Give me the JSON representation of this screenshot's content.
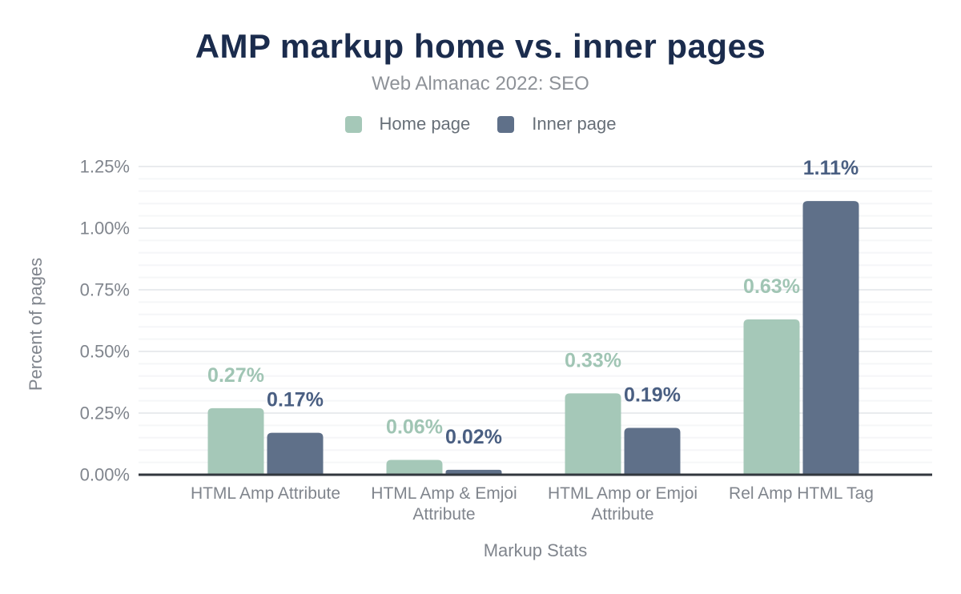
{
  "header": {
    "title": "AMP markup home vs. inner pages",
    "subtitle": "Web Almanac 2022: SEO"
  },
  "legend": [
    {
      "label": "Home page",
      "color": "#a5c8b8"
    },
    {
      "label": "Inner page",
      "color": "#5f7089"
    }
  ],
  "colors": {
    "title_text": "#1b2c4d",
    "subtitle_text": "#8e9298",
    "home_series": "#a5c8b8",
    "inner_series": "#5f7089",
    "home_value_label": "#a0c5b4",
    "inner_value_label": "#4a5f82",
    "axis_text": "#80858d",
    "axis_line": "#32373e",
    "grid_major": "#e9ebee",
    "grid_minor": "#f5f6f8",
    "background": "#ffffff"
  },
  "chart_data": {
    "type": "bar",
    "title": "AMP markup home vs. inner pages",
    "subtitle": "Web Almanac 2022: SEO",
    "xlabel": "Markup Stats",
    "ylabel": "Percent of pages",
    "categories": [
      "HTML Amp Attribute",
      "HTML Amp & Emjoi Attribute",
      "HTML Amp or Emjoi Attribute",
      "Rel Amp HTML Tag"
    ],
    "category_lines": [
      [
        "HTML Amp Attribute"
      ],
      [
        "HTML Amp & Emjoi",
        "Attribute"
      ],
      [
        "HTML Amp or Emjoi",
        "Attribute"
      ],
      [
        "Rel Amp HTML Tag"
      ]
    ],
    "series": [
      {
        "name": "Home page",
        "color": "#a5c8b8",
        "label_color": "#a0c5b4",
        "values": [
          0.27,
          0.06,
          0.33,
          0.63
        ],
        "value_labels": [
          "0.27%",
          "0.06%",
          "0.33%",
          "0.63%"
        ]
      },
      {
        "name": "Inner page",
        "color": "#5f7089",
        "label_color": "#4a5f82",
        "values": [
          0.17,
          0.02,
          0.19,
          1.11
        ],
        "value_labels": [
          "0.17%",
          "0.02%",
          "0.19%",
          "1.11%"
        ]
      }
    ],
    "ylim": [
      0,
      1.25
    ],
    "yticks": [
      {
        "value": 0.0,
        "label": "0.00%"
      },
      {
        "value": 0.25,
        "label": "0.25%"
      },
      {
        "value": 0.5,
        "label": "0.50%"
      },
      {
        "value": 0.75,
        "label": "0.75%"
      },
      {
        "value": 1.0,
        "label": "1.00%"
      },
      {
        "value": 1.25,
        "label": "1.25%"
      }
    ],
    "grid": {
      "minor_step": 0.05,
      "major_step": 0.25,
      "visible": true
    },
    "legend_position": "top"
  }
}
